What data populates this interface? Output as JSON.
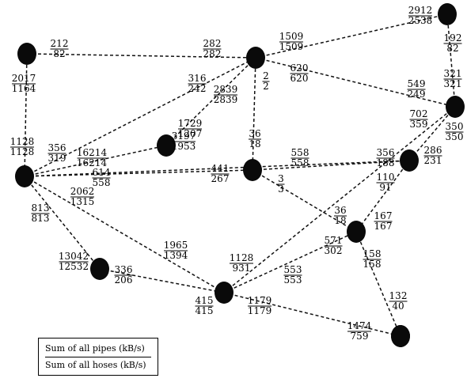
{
  "nodes": [
    "n1",
    "n2",
    "n3",
    "n4",
    "n5",
    "n6",
    "n7",
    "n8",
    "n9",
    "n10",
    "n11",
    "n12",
    "n13"
  ],
  "edges": [
    {
      "from": "n1",
      "to": "n2"
    },
    {
      "from": "n1",
      "to": "n3"
    },
    {
      "from": "n2",
      "to": "n4"
    },
    {
      "from": "n2",
      "to": "n6"
    },
    {
      "from": "n2",
      "to": "n7"
    },
    {
      "from": "n2",
      "to": "n5"
    },
    {
      "from": "n2",
      "to": "n8"
    },
    {
      "from": "n4",
      "to": "n6"
    },
    {
      "from": "n3",
      "to": "n2"
    },
    {
      "from": "n3",
      "to": "n7"
    },
    {
      "from": "n3",
      "to": "n9"
    },
    {
      "from": "n3",
      "to": "n8"
    },
    {
      "from": "n3",
      "to": "n10"
    },
    {
      "from": "n3",
      "to": "n12"
    },
    {
      "from": "n8",
      "to": "n9"
    },
    {
      "from": "n8",
      "to": "n11"
    },
    {
      "from": "n9",
      "to": "n11"
    },
    {
      "from": "n12",
      "to": "n10"
    },
    {
      "from": "n10",
      "to": "n11"
    },
    {
      "from": "n10",
      "to": "n13"
    },
    {
      "from": "n10",
      "to": "n6"
    },
    {
      "from": "n11",
      "to": "n13"
    },
    {
      "from": "n6",
      "to": "n9"
    }
  ],
  "labels": [
    {
      "id": "n1-n2",
      "top": "212",
      "bottom": "82"
    },
    {
      "id": "n1-n2-b",
      "top": "282",
      "bottom": "282"
    },
    {
      "id": "n1-n3",
      "top": "2017",
      "bottom": "1164"
    },
    {
      "id": "n2-n4",
      "top": "1509",
      "bottom": "1509"
    },
    {
      "id": "n4-top",
      "top": "2912",
      "bottom": "2538"
    },
    {
      "id": "n4-n6",
      "top": "192",
      "bottom": "82"
    },
    {
      "id": "n4-n6-b",
      "top": "321",
      "bottom": "321"
    },
    {
      "id": "n2-n6",
      "top": "620",
      "bottom": "620"
    },
    {
      "id": "n2-n6-b",
      "top": "549",
      "bottom": "249"
    },
    {
      "id": "n3-n2",
      "top": "316",
      "bottom": "242"
    },
    {
      "id": "n2-n5",
      "top": "2839",
      "bottom": "2839"
    },
    {
      "id": "n2-n8",
      "top": "2",
      "bottom": "2"
    },
    {
      "id": "n5",
      "top": "1729",
      "bottom": "1207"
    },
    {
      "id": "n3-self",
      "top": "1128",
      "bottom": "1128"
    },
    {
      "id": "n3-n2-c",
      "top": "356",
      "bottom": "319"
    },
    {
      "id": "n3-n5",
      "top": "16214",
      "bottom": "16214"
    },
    {
      "id": "n5-b",
      "top": "3197",
      "bottom": "1953"
    },
    {
      "id": "n8-top",
      "top": "36",
      "bottom": "18"
    },
    {
      "id": "n3-n8",
      "top": "614",
      "bottom": "558"
    },
    {
      "id": "n3-n8-b",
      "top": "441",
      "bottom": "267"
    },
    {
      "id": "n8-n7",
      "top": "558",
      "bottom": "558"
    },
    {
      "id": "n6-n10",
      "top": "702",
      "bottom": "359"
    },
    {
      "id": "n6",
      "top": "350",
      "bottom": "350"
    },
    {
      "id": "n7-n10",
      "top": "356",
      "bottom": "188"
    },
    {
      "id": "n7",
      "top": "286",
      "bottom": "231"
    },
    {
      "id": "n8-n9",
      "top": "3",
      "bottom": "3"
    },
    {
      "id": "n7-n9",
      "top": "110",
      "bottom": "91"
    },
    {
      "id": "n3-down",
      "top": "813",
      "bottom": "813"
    },
    {
      "id": "n3-n10",
      "top": "2062",
      "bottom": "1315"
    },
    {
      "id": "n9-a",
      "top": "36",
      "bottom": "18"
    },
    {
      "id": "n9-b",
      "top": "167",
      "bottom": "167"
    },
    {
      "id": "n9-n10",
      "top": "571",
      "bottom": "302"
    },
    {
      "id": "n11-n9",
      "top": "158",
      "bottom": "158"
    },
    {
      "id": "n12",
      "top": "13042",
      "bottom": "12532"
    },
    {
      "id": "n12-n10",
      "top": "336",
      "bottom": "206"
    },
    {
      "id": "n3-n11",
      "top": "1965",
      "bottom": "1394"
    },
    {
      "id": "n11-n12",
      "top": "1128",
      "bottom": "931"
    },
    {
      "id": "n11-n9-b",
      "top": "553",
      "bottom": "553"
    },
    {
      "id": "n11-left",
      "top": "415",
      "bottom": "415"
    },
    {
      "id": "n11-n13",
      "top": "1179",
      "bottom": "1179"
    },
    {
      "id": "n13-a",
      "top": "132",
      "bottom": "40"
    },
    {
      "id": "n13-b",
      "top": "1474",
      "bottom": "759"
    }
  ],
  "legend": {
    "top": "Sum of all pipes (kB/s)",
    "bottom": "Sum of all hoses (kB/s)"
  }
}
